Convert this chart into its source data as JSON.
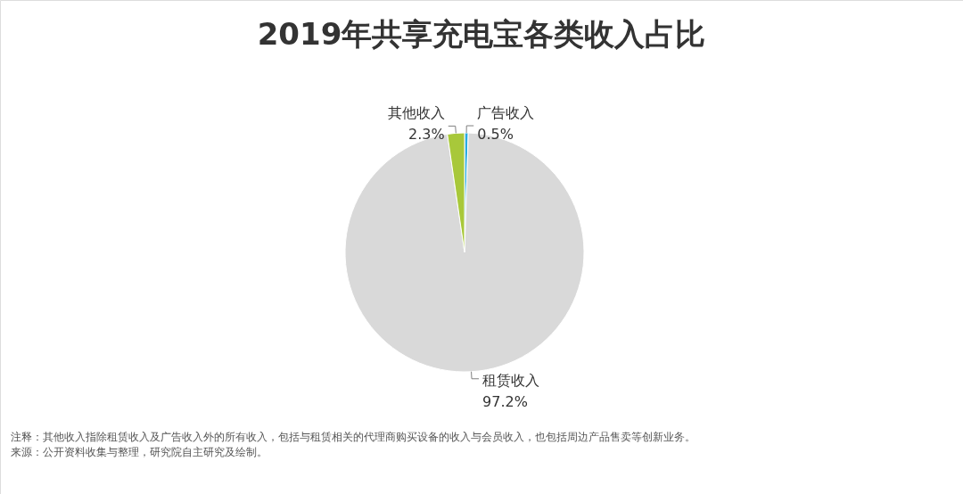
{
  "chart_data": {
    "type": "pie",
    "title": "2019年共享充电宝各类收入占比",
    "categories": [
      "广告收入",
      "租赁收入",
      "其他收入"
    ],
    "values": [
      0.5,
      97.2,
      2.3
    ],
    "value_labels": [
      "0.5%",
      "97.2%",
      "2.3%"
    ],
    "colors": [
      "#29abe2",
      "#d9d9d9",
      "#a8c83a"
    ],
    "annotations": [
      "注释：其他收入指除租赁收入及广告收入外的所有收入，包括与租赁相关的代理商购买设备的收入与会员收入，也包括周边产品售卖等创新业务。",
      "来源：公开资料收集与整理，研究院自主研究及绘制。"
    ]
  }
}
